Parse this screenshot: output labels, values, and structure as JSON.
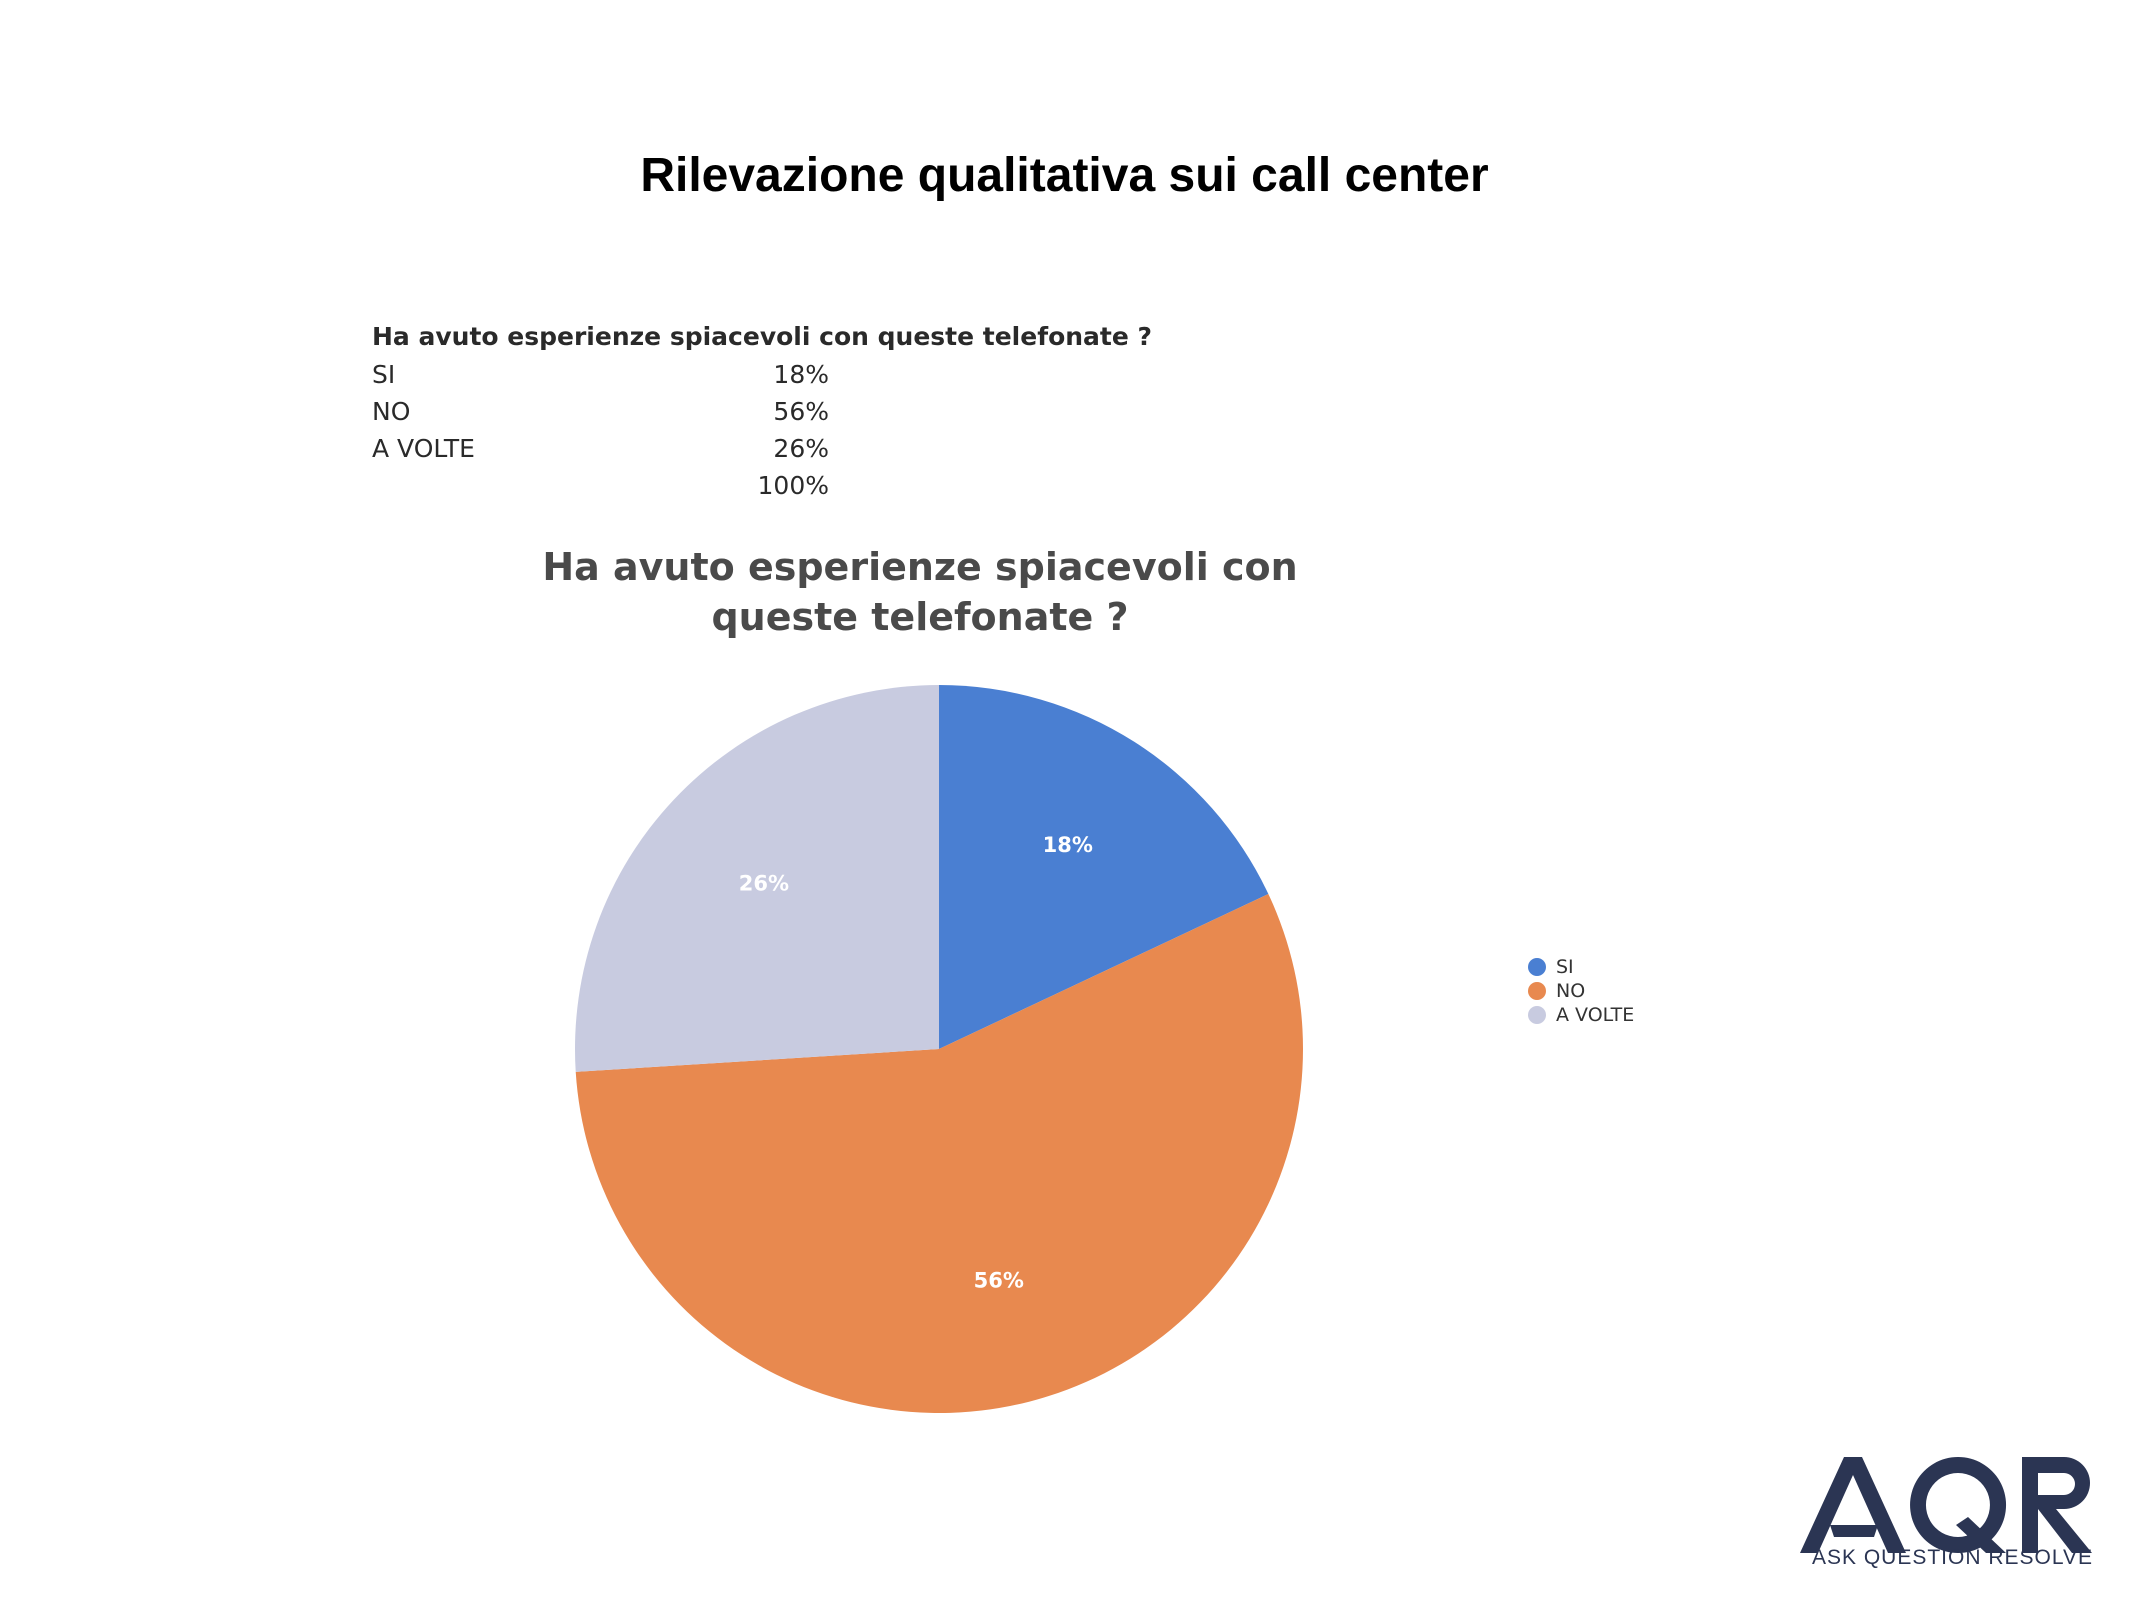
{
  "slide": {
    "title": "Rilevazione qualitativa sui call center"
  },
  "table": {
    "question": "Ha avuto esperienze spiacevoli con queste telefonate ?",
    "rows": [
      {
        "label": "SI",
        "value": "18%"
      },
      {
        "label": "NO",
        "value": "56%"
      },
      {
        "label": "A VOLTE",
        "value": "26%"
      }
    ],
    "total": "100%"
  },
  "chart_data": {
    "type": "pie",
    "title_line1": "Ha avuto esperienze spiacevoli con",
    "title_line2": "queste telefonate ?",
    "categories": [
      "SI",
      "NO",
      "A VOLTE"
    ],
    "values": [
      18,
      56,
      26
    ],
    "data_labels": [
      "18%",
      "56%",
      "26%"
    ],
    "colors": [
      "#4a7fd2",
      "#e8894f",
      "#c8cbe0"
    ],
    "start": "12 o'clock, clockwise",
    "legend_position": "right"
  },
  "logo": {
    "caption": "ASK QUESTION RESOLVE",
    "wordmark": "AQR",
    "color": "#2b3553"
  }
}
